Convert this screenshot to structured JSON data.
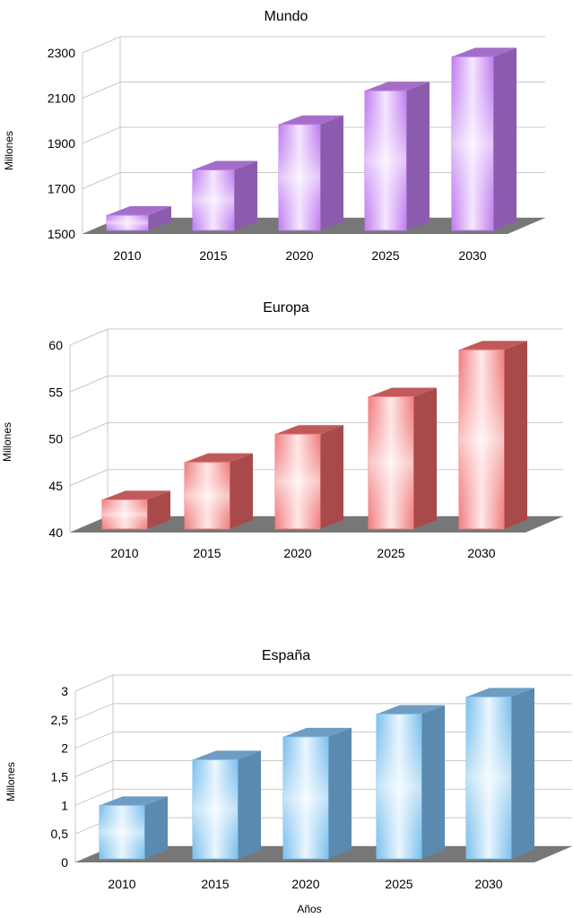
{
  "chart_data": [
    {
      "type": "bar",
      "title": "Mundo",
      "ylabel": "Millones",
      "xlabel": "",
      "categories": [
        "2010",
        "2015",
        "2020",
        "2025",
        "2030"
      ],
      "values": [
        1583,
        1783,
        1984,
        2133,
        2283
      ],
      "ylim": [
        1500,
        2300
      ],
      "yticks": [
        1500,
        1700,
        1900,
        2100,
        2300
      ],
      "ytick_labels": [
        "1500",
        "1700",
        "1900",
        "2100",
        "2300"
      ],
      "grid": true,
      "colors": {
        "light": "#f6eaff",
        "mid": "#dcb4ff",
        "dark": "#c07eee",
        "side": "#8b5cad",
        "top": "#a46ec8"
      }
    },
    {
      "type": "bar",
      "title": "Europa",
      "ylabel": "Millones",
      "xlabel": "",
      "categories": [
        "2010",
        "2015",
        "2020",
        "2025",
        "2030"
      ],
      "values": [
        43.5,
        47.5,
        50.5,
        54.5,
        59.5
      ],
      "ylim": [
        40,
        60
      ],
      "yticks": [
        40,
        45,
        50,
        55,
        60
      ],
      "ytick_labels": [
        "40",
        "45",
        "50",
        "55",
        "60"
      ],
      "grid": true,
      "colors": {
        "light": "#ffecec",
        "mid": "#ffb0b0",
        "dark": "#f07e80",
        "side": "#a84a4a",
        "top": "#c05a5a"
      }
    },
    {
      "type": "bar",
      "title": "España",
      "ylabel": "Millones",
      "xlabel": "Años",
      "categories": [
        "2010",
        "2015",
        "2020",
        "2025",
        "2030"
      ],
      "values": [
        1.0,
        1.8,
        2.2,
        2.6,
        2.9
      ],
      "ylim": [
        0,
        3
      ],
      "yticks": [
        0,
        0.5,
        1,
        1.5,
        2,
        2.5,
        3
      ],
      "ytick_labels": [
        "0",
        "0,5",
        "1",
        "1,5",
        "2",
        "2,5",
        "3"
      ],
      "grid": true,
      "colors": {
        "light": "#eef8ff",
        "mid": "#b8def8",
        "dark": "#7cc0ec",
        "side": "#5a8ab0",
        "top": "#6e9cc2"
      }
    }
  ]
}
